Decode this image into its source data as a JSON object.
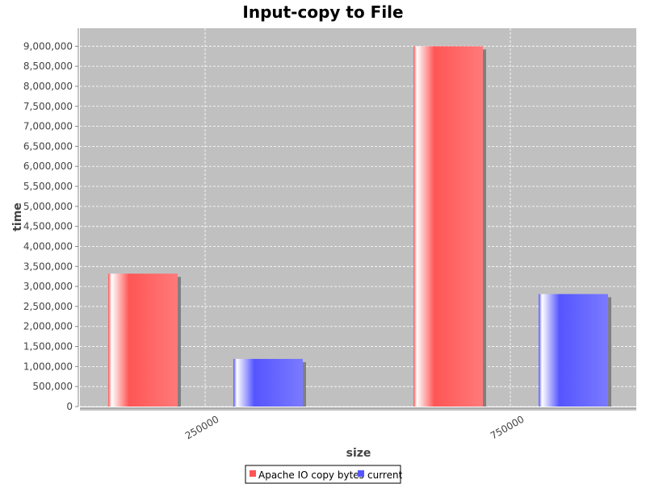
{
  "chart_data": {
    "type": "bar",
    "title": "Input-copy to File",
    "xlabel": "size",
    "ylabel": "time",
    "categories": [
      "250000",
      "750000"
    ],
    "series": [
      {
        "name": "Apache IO copy bytes",
        "color": "#ff5555",
        "values": [
          3320000,
          9000000
        ]
      },
      {
        "name": "current",
        "color": "#5555ff",
        "values": [
          1190000,
          2810000
        ]
      }
    ],
    "ylim": [
      0,
      9450000
    ],
    "yticks": [
      0,
      500000,
      1000000,
      1500000,
      2000000,
      2500000,
      3000000,
      3500000,
      4000000,
      4500000,
      5000000,
      5500000,
      6000000,
      6500000,
      7000000,
      7500000,
      8000000,
      8500000,
      9000000
    ],
    "ytick_labels": [
      "0",
      "500,000",
      "1,000,000",
      "1,500,000",
      "2,000,000",
      "2,500,000",
      "3,000,000",
      "3,500,000",
      "4,000,000",
      "4,500,000",
      "5,000,000",
      "5,500,000",
      "6,000,000",
      "6,500,000",
      "7,000,000",
      "7,500,000",
      "8,000,000",
      "8,500,000",
      "9,000,000"
    ],
    "plot_background": "#c0c0c0",
    "grid": true,
    "legend_position": "bottom"
  }
}
